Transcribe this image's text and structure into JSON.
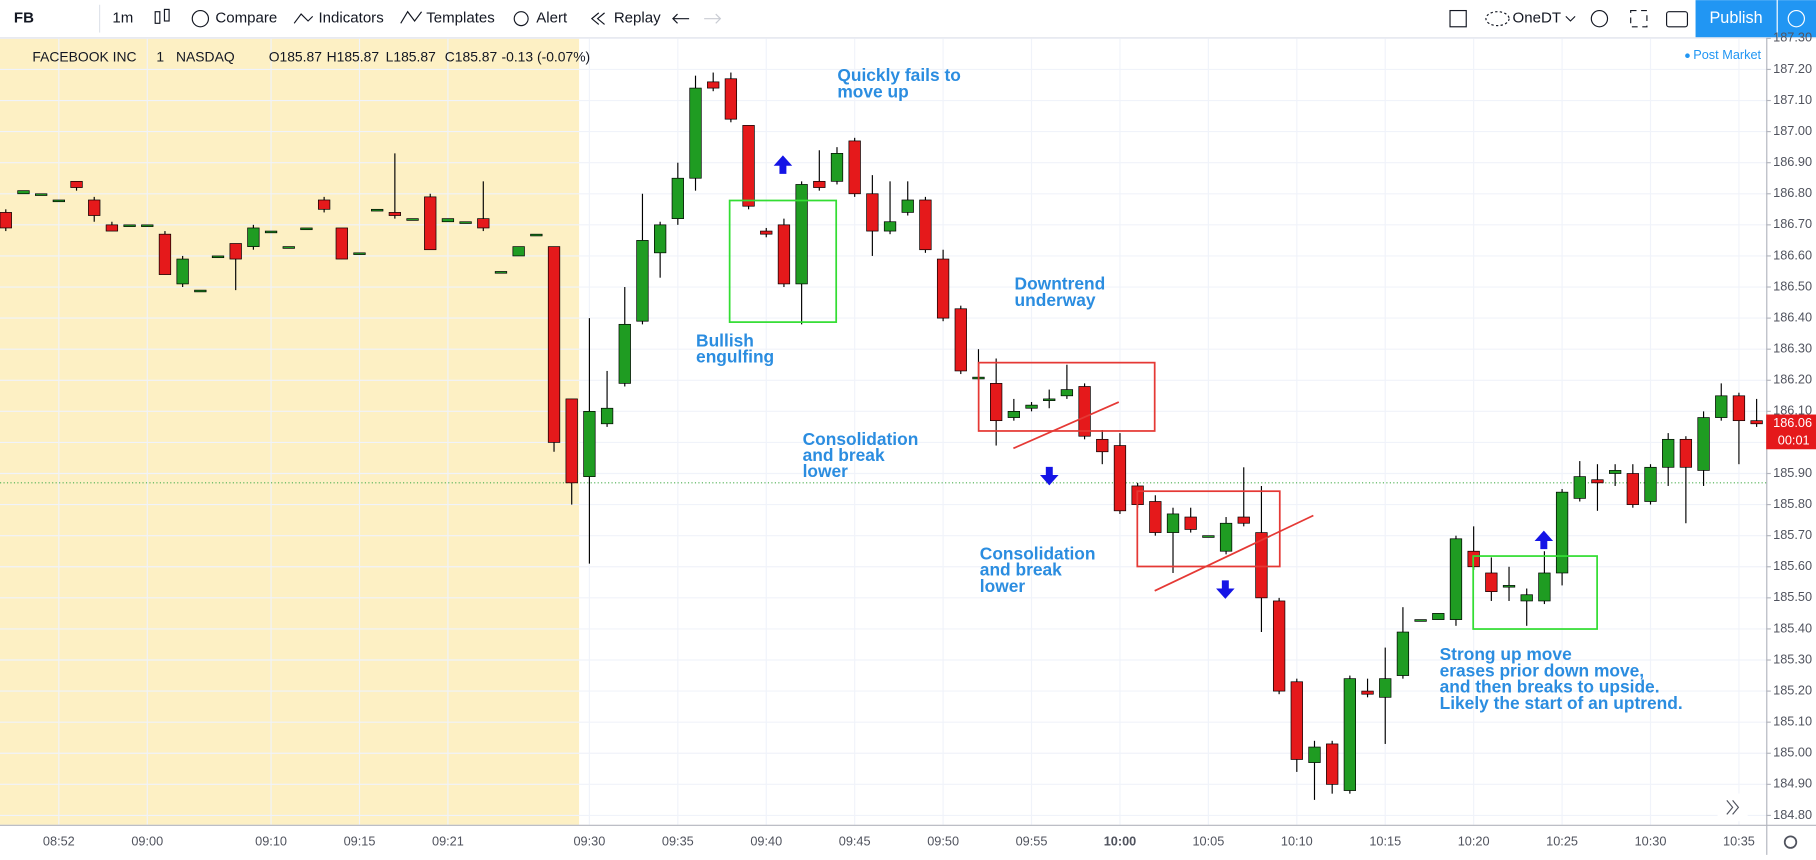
{
  "toolbar": {
    "symbol": "FB",
    "interval": "1m",
    "buttons": [
      "Compare",
      "Indicators",
      "Templates",
      "Alert",
      "Replay"
    ],
    "layout": "OneDT",
    "publish": "Publish"
  },
  "legend": {
    "name": "FACEBOOK INC",
    "interval": "1",
    "exchange": "NASDAQ",
    "ohlc": [
      "O185.87",
      "H185.87",
      "L185.87",
      "C185.87"
    ],
    "change": "-0.13 (-0.07%)",
    "session": "Post Market"
  },
  "chart_data": {
    "type": "candlestick",
    "categories": [
      null,
      null,
      null,
      "08:52",
      null,
      null,
      null,
      null,
      "09:00",
      null,
      null,
      null,
      null,
      null,
      null,
      "09:10",
      null,
      null,
      null,
      null,
      "09:15",
      null,
      null,
      null,
      null,
      "09:21",
      null,
      null,
      null,
      null,
      null,
      null,
      null,
      "09:30",
      null,
      null,
      null,
      null,
      "09:35",
      null,
      null,
      null,
      null,
      "09:40",
      null,
      null,
      null,
      null,
      "09:45",
      null,
      null,
      null,
      null,
      "09:50",
      null,
      null,
      null,
      null,
      "09:55",
      null,
      null,
      null,
      null,
      "10:00",
      null,
      null,
      null,
      null,
      "10:05",
      null,
      null,
      null,
      null,
      "10:10",
      null,
      null,
      null,
      null,
      "10:15",
      null,
      null,
      null,
      null,
      "10:20",
      null,
      null,
      null,
      null,
      "10:25",
      null,
      null,
      null,
      null,
      "10:30",
      null,
      null,
      null,
      null,
      "10:35",
      null
    ],
    "open": [
      186.74,
      186.8,
      186.8,
      186.78,
      186.84,
      186.78,
      186.7,
      186.7,
      186.7,
      186.67,
      186.51,
      186.49,
      186.6,
      186.64,
      186.63,
      186.68,
      186.63,
      186.69,
      186.78,
      186.69,
      186.61,
      186.75,
      186.74,
      186.72,
      186.79,
      186.71,
      186.71,
      186.72,
      186.55,
      186.6,
      186.67,
      186.63,
      186.14,
      185.89,
      186.06,
      186.19,
      186.39,
      186.61,
      186.72,
      186.85,
      187.16,
      187.17,
      187.02,
      186.68,
      186.7,
      186.51,
      186.84,
      186.84,
      186.97,
      186.8,
      186.68,
      186.74,
      186.78,
      186.59,
      186.43,
      186.21,
      186.19,
      186.08,
      186.11,
      186.14,
      186.15,
      186.18,
      186.01,
      185.99,
      185.86,
      185.81,
      185.71,
      185.76,
      185.7,
      185.65,
      185.76,
      185.71,
      185.49,
      185.23,
      184.97,
      185.03,
      184.88,
      185.2,
      185.18,
      185.25,
      185.43,
      185.43,
      185.43,
      185.65,
      185.58,
      185.54,
      185.49,
      185.49,
      185.58,
      185.82,
      185.88,
      185.9,
      185.9,
      185.81,
      185.92,
      186.01,
      185.91,
      186.08,
      186.15,
      186.07
    ],
    "high": [
      186.75,
      186.81,
      186.8,
      186.78,
      186.84,
      186.79,
      186.71,
      186.7,
      186.7,
      186.68,
      186.6,
      186.49,
      186.6,
      186.64,
      186.7,
      186.68,
      186.63,
      186.69,
      186.79,
      186.69,
      186.61,
      186.75,
      186.93,
      186.72,
      186.8,
      186.72,
      186.71,
      186.84,
      186.55,
      186.63,
      186.67,
      186.63,
      186.14,
      186.4,
      186.23,
      186.5,
      186.8,
      186.71,
      186.9,
      187.18,
      187.19,
      187.19,
      187.02,
      186.69,
      186.72,
      186.84,
      186.94,
      186.95,
      186.98,
      186.86,
      186.84,
      186.84,
      186.79,
      186.62,
      186.44,
      186.3,
      186.27,
      186.14,
      186.13,
      186.17,
      186.25,
      186.19,
      186.04,
      186.03,
      185.87,
      185.83,
      185.79,
      185.79,
      185.7,
      185.76,
      185.92,
      185.86,
      185.5,
      185.24,
      185.04,
      185.04,
      185.25,
      185.24,
      185.34,
      185.47,
      185.43,
      185.45,
      185.7,
      185.73,
      185.63,
      185.6,
      185.53,
      185.65,
      185.85,
      185.94,
      185.93,
      185.93,
      185.93,
      185.93,
      186.03,
      186.02,
      186.1,
      186.19,
      186.16,
      186.14
    ],
    "low": [
      186.68,
      186.8,
      186.8,
      186.78,
      186.81,
      186.71,
      186.68,
      186.7,
      186.7,
      186.54,
      186.5,
      186.49,
      186.6,
      186.49,
      186.62,
      186.68,
      186.63,
      186.69,
      186.74,
      186.59,
      186.61,
      186.75,
      186.72,
      186.72,
      186.62,
      186.71,
      186.71,
      186.68,
      186.55,
      186.6,
      186.67,
      185.97,
      185.8,
      185.61,
      186.05,
      186.18,
      186.38,
      186.53,
      186.7,
      186.81,
      187.13,
      187.03,
      186.75,
      186.66,
      186.5,
      186.38,
      186.81,
      186.83,
      186.79,
      186.6,
      186.67,
      186.73,
      186.61,
      186.39,
      186.22,
      186.2,
      185.99,
      186.07,
      186.1,
      186.11,
      186.14,
      186.01,
      185.93,
      185.77,
      185.79,
      185.7,
      185.58,
      185.71,
      185.7,
      185.64,
      185.73,
      185.39,
      185.19,
      184.94,
      184.85,
      184.87,
      184.87,
      185.18,
      185.03,
      185.24,
      185.43,
      185.43,
      185.41,
      185.59,
      185.49,
      185.49,
      185.41,
      185.48,
      185.54,
      185.81,
      185.78,
      185.86,
      185.79,
      185.8,
      185.86,
      185.74,
      185.86,
      186.07,
      185.93,
      186.05
    ],
    "close": [
      186.69,
      186.81,
      186.8,
      186.78,
      186.82,
      186.73,
      186.68,
      186.7,
      186.7,
      186.54,
      186.59,
      186.49,
      186.6,
      186.59,
      186.69,
      186.68,
      186.63,
      186.69,
      186.75,
      186.59,
      186.61,
      186.75,
      186.73,
      186.72,
      186.62,
      186.72,
      186.71,
      186.69,
      186.55,
      186.63,
      186.67,
      186.0,
      185.87,
      186.1,
      186.11,
      186.38,
      186.65,
      186.7,
      186.85,
      187.14,
      187.14,
      187.04,
      186.76,
      186.67,
      186.51,
      186.83,
      186.82,
      186.93,
      186.8,
      186.68,
      186.71,
      186.78,
      186.62,
      186.4,
      186.23,
      186.21,
      186.07,
      186.1,
      186.12,
      186.14,
      186.17,
      186.02,
      185.97,
      185.78,
      185.8,
      185.71,
      185.77,
      185.72,
      185.7,
      185.74,
      185.74,
      185.5,
      185.2,
      184.98,
      185.02,
      184.9,
      185.24,
      185.19,
      185.24,
      185.39,
      185.43,
      185.45,
      185.69,
      185.6,
      185.52,
      185.54,
      185.51,
      185.58,
      185.84,
      185.89,
      185.87,
      185.91,
      185.8,
      185.92,
      186.01,
      185.92,
      186.08,
      186.15,
      186.07,
      186.06
    ],
    "up_color": "#1f9c22",
    "down_color": "#e5191b",
    "ylim": [
      184.77,
      187.3
    ],
    "yticks": [
      {
        "value": 184.8,
        "label": "184.80"
      },
      {
        "value": 184.9,
        "label": "184.90"
      },
      {
        "value": 185,
        "label": "185.00"
      },
      {
        "value": 185.1,
        "label": "185.10"
      },
      {
        "value": 185.2,
        "label": "185.20"
      },
      {
        "value": 185.3,
        "label": "185.30"
      },
      {
        "value": 185.4,
        "label": "185.40"
      },
      {
        "value": 185.5,
        "label": "185.50"
      },
      {
        "value": 185.6,
        "label": "185.60"
      },
      {
        "value": 185.7,
        "label": "185.70"
      },
      {
        "value": 185.8,
        "label": "185.80"
      },
      {
        "value": 185.9,
        "label": "185.90"
      },
      {
        "value": 186,
        "label": "186.00"
      },
      {
        "value": 186.1,
        "label": "186.10"
      },
      {
        "value": 186.2,
        "label": "186.20"
      },
      {
        "value": 186.3,
        "label": "186.30"
      },
      {
        "value": 186.4,
        "label": "186.40"
      },
      {
        "value": 186.5,
        "label": "186.50"
      },
      {
        "value": 186.6,
        "label": "186.60"
      },
      {
        "value": 186.7,
        "label": "186.70"
      },
      {
        "value": 186.8,
        "label": "186.80"
      },
      {
        "value": 186.9,
        "label": "186.90"
      },
      {
        "value": 187,
        "label": "187.00"
      },
      {
        "value": 187.1,
        "label": "187.10"
      },
      {
        "value": 187.2,
        "label": "187.20"
      },
      {
        "value": 187.3,
        "label": "187.30"
      }
    ],
    "grid": true,
    "reference_line": 185.87,
    "last_price": 186.06,
    "countdown": "00:01",
    "annotations": [
      {
        "lines": [
          "Quickly fails to",
          "move up"
        ]
      },
      {
        "lines": [
          "Bullish",
          "engulfing"
        ]
      },
      {
        "lines": [
          "Downtrend",
          "underway"
        ]
      },
      {
        "lines": [
          "Consolidation",
          "and break",
          "lower"
        ]
      },
      {
        "lines": [
          "Consolidation",
          "and break",
          "lower"
        ]
      },
      {
        "lines": [
          "Strong up move",
          "erases prior down move,",
          "and then breaks to upside.",
          "Likely the start of an uptrend."
        ]
      }
    ]
  }
}
